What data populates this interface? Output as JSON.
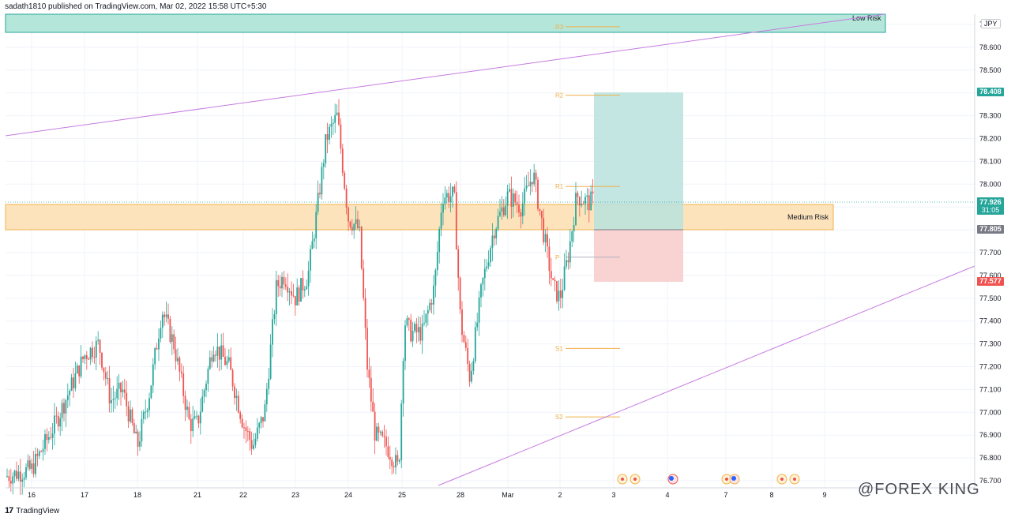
{
  "header": {
    "published_text": "sadath1810 published on TradingView.com, Mar 02, 2022 15:58 UTC+5:30"
  },
  "currency_label": "JPY",
  "zones": {
    "low_risk": "Low Risk",
    "medium_risk": "Medium Risk"
  },
  "pivots": {
    "r3": "R3",
    "r2": "R2",
    "r1": "R1",
    "p": "P",
    "s1": "S1",
    "s2": "S2"
  },
  "price_tags": {
    "target": "78.408",
    "current": "77.926",
    "countdown": "31:05",
    "entry": "77.805",
    "stop": "77.577"
  },
  "footer": {
    "logo_mark": "17",
    "brand": "TradingView"
  },
  "watermark": {
    "icon": "@",
    "text": "@FOREX KING"
  },
  "colors": {
    "bull": "#26a69a",
    "bear": "#ef5350",
    "trendline": "#c67be0",
    "pivot": "#f0b04a",
    "low_risk_zone": "#b5e6da",
    "medium_risk_zone": "#fde2b8",
    "take_profit": "#b8e2dd",
    "stop_loss": "#f8cdcd"
  },
  "chart_data": {
    "type": "candlestick",
    "y_ticks": [
      "76.700",
      "76.800",
      "76.900",
      "77.000",
      "77.100",
      "77.200",
      "77.300",
      "77.400",
      "77.500",
      "77.600",
      "77.700",
      "77.800",
      "77.900",
      "78.000",
      "78.100",
      "78.200",
      "78.300",
      "78.400",
      "78.500",
      "78.600",
      "78.700"
    ],
    "ylim": [
      76.68,
      78.72
    ],
    "x_ticks": [
      "16",
      "17",
      "18",
      "21",
      "22",
      "23",
      "24",
      "25",
      "28",
      "Mar",
      "2",
      "3",
      "4",
      "7",
      "8",
      "9"
    ],
    "close_series_approx": [
      {
        "x": "16",
        "close": 76.72
      },
      {
        "x": "17",
        "close": 77.18
      },
      {
        "x": "18",
        "close": 76.82
      },
      {
        "x": "21",
        "close": 77.3
      },
      {
        "x": "22",
        "close": 76.9
      },
      {
        "x": "23",
        "close": 78.3
      },
      {
        "x": "24",
        "close": 77.8
      },
      {
        "x": "25",
        "close": 76.8
      },
      {
        "x": "28",
        "close": 77.95
      },
      {
        "x": "Mar",
        "close": 77.95
      },
      {
        "x": "2",
        "close": 77.93
      }
    ],
    "levels": {
      "R3": 78.69,
      "R2": 78.39,
      "R1": 77.99,
      "P": 77.68,
      "S1": 77.28,
      "S2": 76.98
    },
    "position": {
      "entry": 77.805,
      "target": 78.408,
      "stop": 77.577
    },
    "zones": [
      {
        "name": "Low Risk",
        "from": 78.65,
        "to": 78.73
      },
      {
        "name": "Medium Risk",
        "from": 77.8,
        "to": 77.91
      }
    ]
  }
}
